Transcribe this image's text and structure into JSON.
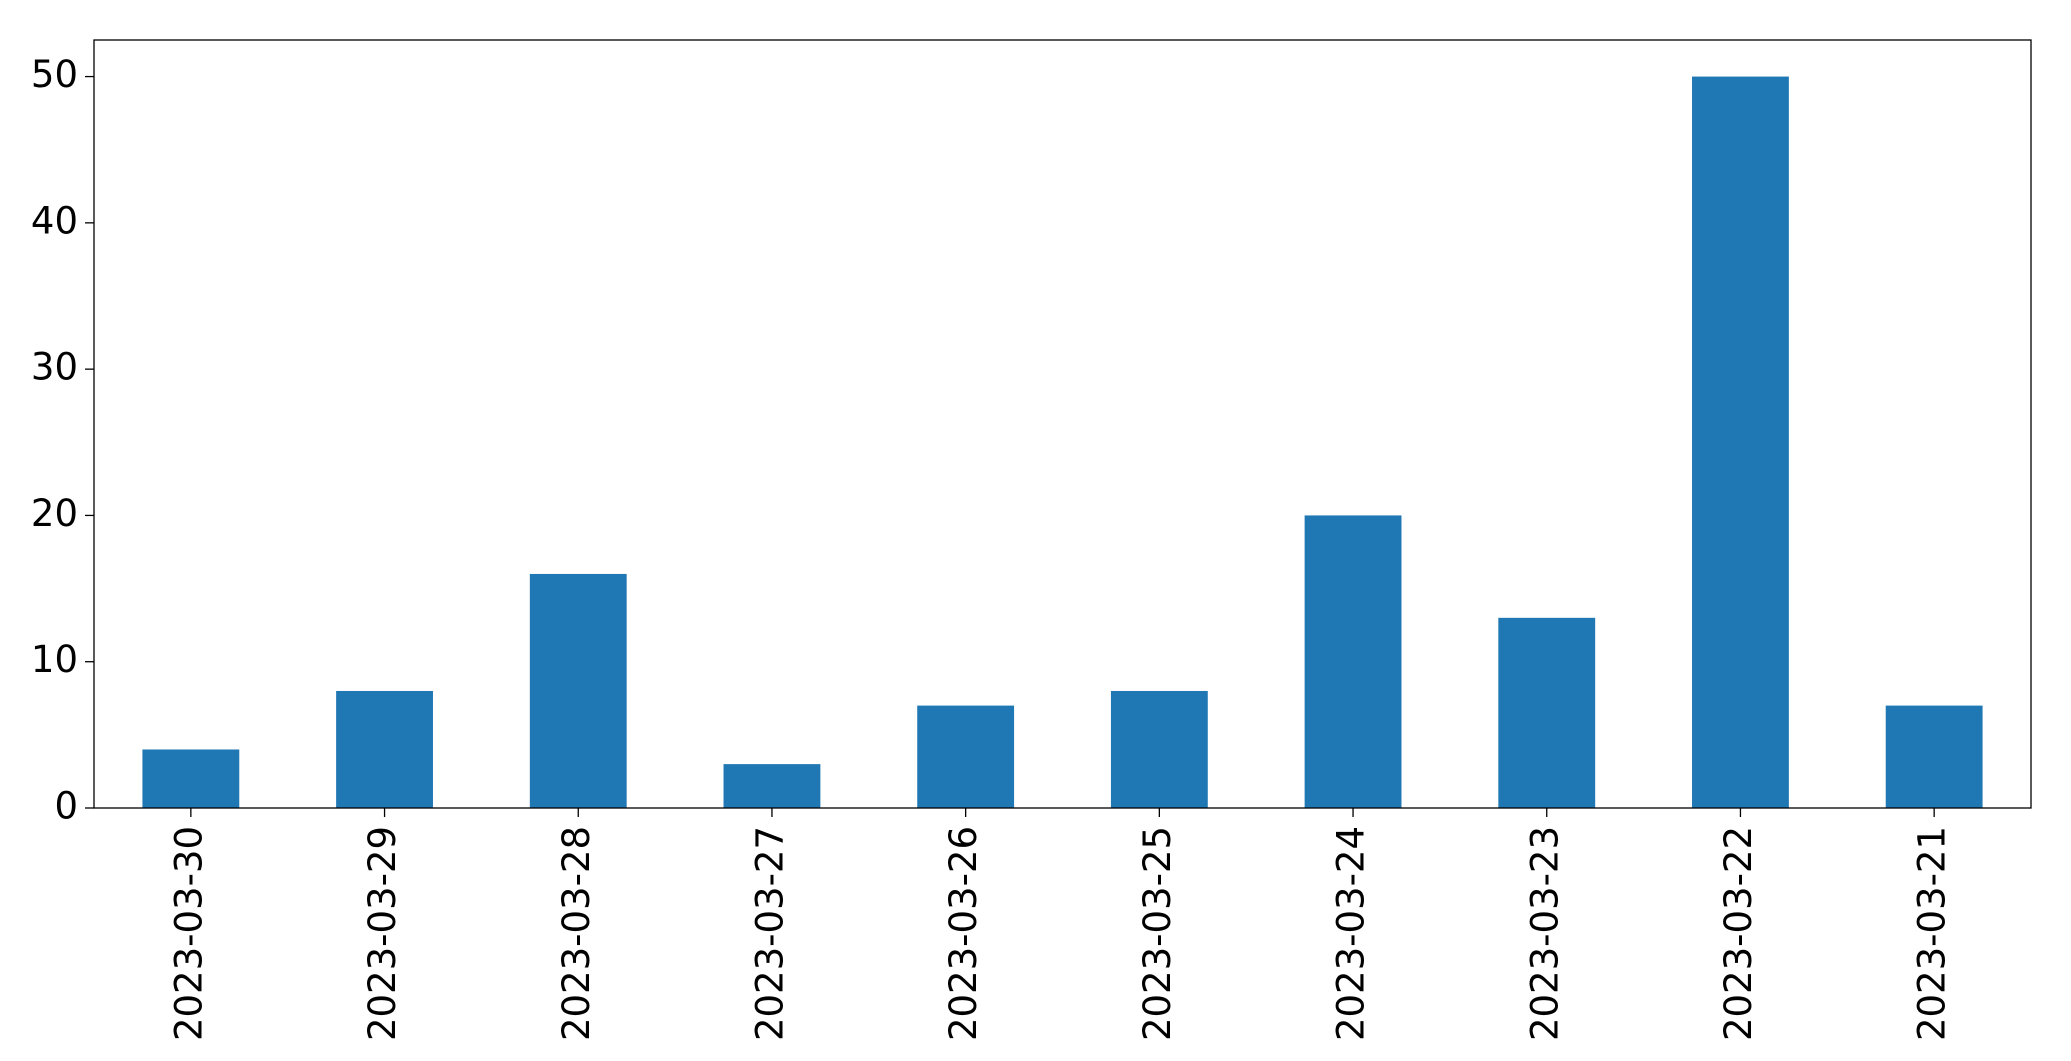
{
  "chart_data": {
    "type": "bar",
    "categories": [
      "2023-03-30",
      "2023-03-29",
      "2023-03-28",
      "2023-03-27",
      "2023-03-26",
      "2023-03-25",
      "2023-03-24",
      "2023-03-23",
      "2023-03-22",
      "2023-03-21"
    ],
    "values": [
      4,
      8,
      16,
      3,
      7,
      8,
      20,
      13,
      50,
      7
    ],
    "color": "#1f77b4",
    "ylim": [
      0,
      52.5
    ],
    "yticks": [
      0,
      10,
      20,
      30,
      40,
      50
    ],
    "grid": false
  }
}
